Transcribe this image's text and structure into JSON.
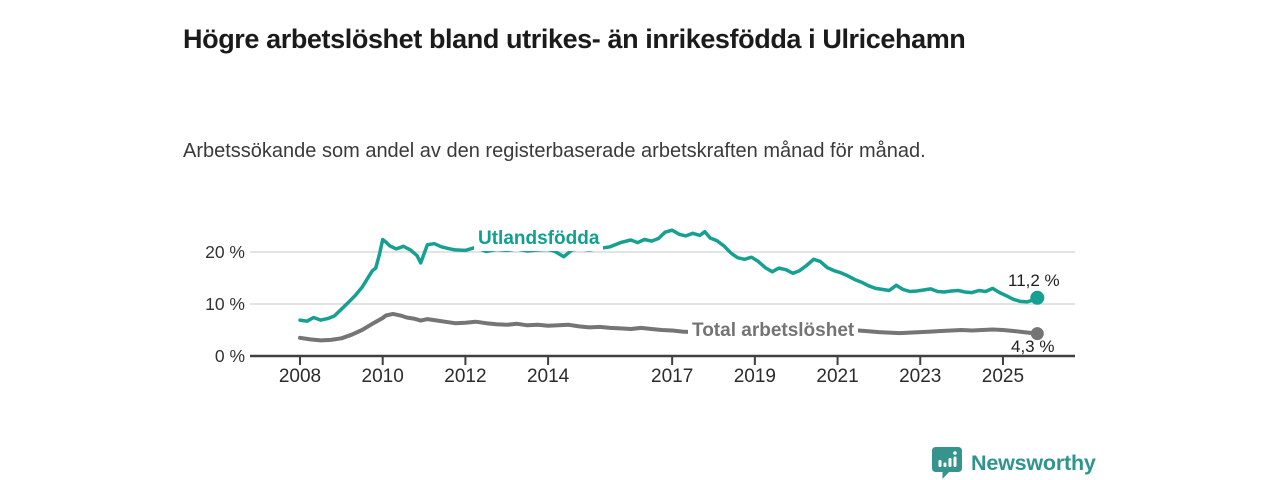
{
  "header": {
    "title": "Högre arbetslöshet bland utrikes- än inrikesfödda i Ulricehamn",
    "subtitle": "Arbetssökande som andel av den registerbaserade arbetskraften månad för månad."
  },
  "colors": {
    "foreign_line": "#16a091",
    "total_line": "#757575",
    "grid": "#dadada",
    "axis": "#404040",
    "tick_label": "#2b2b2b",
    "y_label": "#333333",
    "end_label": "#1f1f1f",
    "brand_teal": "#2f948c"
  },
  "branding": {
    "logo_text": "Newsworthy",
    "logo_icon": "speech-bubble-bar-chart-icon"
  },
  "chart_data": {
    "type": "line",
    "title": "Högre arbetslöshet bland utrikes- än inrikesfödda i Ulricehamn",
    "subtitle": "Arbetssökande som andel av den registerbaserade arbetskraften månad för månad.",
    "xlabel": "",
    "ylabel": "",
    "grid": "horizontal-only",
    "legend_position": "inline-on-lines",
    "xlim": [
      2007.8,
      2026.1
    ],
    "ylim": [
      0,
      25
    ],
    "yticks": [
      {
        "value": 0,
        "label": "0 %"
      },
      {
        "value": 10,
        "label": "10 %"
      },
      {
        "value": 20,
        "label": "20 %"
      }
    ],
    "xticks": [
      {
        "value": 2008,
        "label": "2008"
      },
      {
        "value": 2010,
        "label": "2010"
      },
      {
        "value": 2012,
        "label": "2012"
      },
      {
        "value": 2014,
        "label": "2014"
      },
      {
        "value": 2017,
        "label": "2017"
      },
      {
        "value": 2019,
        "label": "2019"
      },
      {
        "value": 2021,
        "label": "2021"
      },
      {
        "value": 2023,
        "label": "2023"
      },
      {
        "value": 2025,
        "label": "2025"
      }
    ],
    "series": [
      {
        "name": "Utlandsfödda",
        "color": "#16a091",
        "end_value": 11.2,
        "end_label": "11,2 %",
        "points": [
          [
            2008.0,
            6.9
          ],
          [
            2008.17,
            6.7
          ],
          [
            2008.33,
            7.4
          ],
          [
            2008.5,
            6.9
          ],
          [
            2008.67,
            7.2
          ],
          [
            2008.83,
            7.7
          ],
          [
            2009.0,
            9.0
          ],
          [
            2009.17,
            10.3
          ],
          [
            2009.33,
            11.6
          ],
          [
            2009.5,
            13.2
          ],
          [
            2009.67,
            15.4
          ],
          [
            2009.75,
            16.4
          ],
          [
            2009.83,
            16.9
          ],
          [
            2009.92,
            19.5
          ],
          [
            2010.0,
            22.4
          ],
          [
            2010.08,
            21.9
          ],
          [
            2010.17,
            21.2
          ],
          [
            2010.33,
            20.6
          ],
          [
            2010.5,
            21.1
          ],
          [
            2010.67,
            20.4
          ],
          [
            2010.83,
            19.3
          ],
          [
            2010.92,
            17.9
          ],
          [
            2011.08,
            21.4
          ],
          [
            2011.25,
            21.6
          ],
          [
            2011.42,
            21.0
          ],
          [
            2011.58,
            20.7
          ],
          [
            2011.75,
            20.4
          ],
          [
            2012.0,
            20.3
          ],
          [
            2012.25,
            20.9
          ],
          [
            2012.5,
            20.1
          ],
          [
            2012.75,
            20.5
          ],
          [
            2013.0,
            20.3
          ],
          [
            2013.25,
            20.6
          ],
          [
            2013.5,
            20.2
          ],
          [
            2013.75,
            20.4
          ],
          [
            2014.0,
            20.5
          ],
          [
            2014.17,
            20.1
          ],
          [
            2014.38,
            19.1
          ],
          [
            2014.58,
            20.4
          ],
          [
            2014.75,
            20.6
          ],
          [
            2015.0,
            20.4
          ],
          [
            2015.25,
            20.7
          ],
          [
            2015.5,
            21.0
          ],
          [
            2015.75,
            21.8
          ],
          [
            2016.0,
            22.3
          ],
          [
            2016.17,
            21.8
          ],
          [
            2016.33,
            22.4
          ],
          [
            2016.5,
            22.1
          ],
          [
            2016.67,
            22.6
          ],
          [
            2016.83,
            23.8
          ],
          [
            2017.0,
            24.2
          ],
          [
            2017.17,
            23.4
          ],
          [
            2017.33,
            23.1
          ],
          [
            2017.5,
            23.6
          ],
          [
            2017.67,
            23.2
          ],
          [
            2017.79,
            23.9
          ],
          [
            2017.92,
            22.7
          ],
          [
            2018.08,
            22.2
          ],
          [
            2018.25,
            21.2
          ],
          [
            2018.42,
            19.8
          ],
          [
            2018.58,
            18.9
          ],
          [
            2018.75,
            18.6
          ],
          [
            2018.92,
            19.0
          ],
          [
            2019.08,
            18.2
          ],
          [
            2019.25,
            17.0
          ],
          [
            2019.42,
            16.2
          ],
          [
            2019.58,
            16.9
          ],
          [
            2019.75,
            16.6
          ],
          [
            2019.92,
            15.9
          ],
          [
            2020.08,
            16.4
          ],
          [
            2020.25,
            17.4
          ],
          [
            2020.42,
            18.6
          ],
          [
            2020.58,
            18.2
          ],
          [
            2020.75,
            17.0
          ],
          [
            2020.92,
            16.4
          ],
          [
            2021.08,
            16.0
          ],
          [
            2021.25,
            15.4
          ],
          [
            2021.42,
            14.7
          ],
          [
            2021.58,
            14.2
          ],
          [
            2021.75,
            13.5
          ],
          [
            2021.92,
            13.0
          ],
          [
            2022.08,
            12.8
          ],
          [
            2022.25,
            12.6
          ],
          [
            2022.42,
            13.6
          ],
          [
            2022.58,
            12.8
          ],
          [
            2022.75,
            12.4
          ],
          [
            2022.92,
            12.5
          ],
          [
            2023.08,
            12.7
          ],
          [
            2023.25,
            12.9
          ],
          [
            2023.42,
            12.4
          ],
          [
            2023.58,
            12.3
          ],
          [
            2023.75,
            12.5
          ],
          [
            2023.92,
            12.6
          ],
          [
            2024.08,
            12.3
          ],
          [
            2024.25,
            12.2
          ],
          [
            2024.42,
            12.6
          ],
          [
            2024.58,
            12.4
          ],
          [
            2024.75,
            13.0
          ],
          [
            2024.92,
            12.2
          ],
          [
            2025.08,
            11.6
          ],
          [
            2025.25,
            10.9
          ],
          [
            2025.42,
            10.5
          ],
          [
            2025.58,
            10.4
          ],
          [
            2025.75,
            10.8
          ],
          [
            2025.83,
            11.2
          ]
        ]
      },
      {
        "name": "Total arbetslöshet",
        "color": "#757575",
        "end_value": 4.3,
        "end_label": "4,3 %",
        "points": [
          [
            2008.0,
            3.5
          ],
          [
            2008.25,
            3.2
          ],
          [
            2008.5,
            3.0
          ],
          [
            2008.75,
            3.1
          ],
          [
            2009.0,
            3.4
          ],
          [
            2009.25,
            4.1
          ],
          [
            2009.5,
            5.0
          ],
          [
            2009.75,
            6.2
          ],
          [
            2010.0,
            7.3
          ],
          [
            2010.08,
            7.8
          ],
          [
            2010.25,
            8.1
          ],
          [
            2010.42,
            7.8
          ],
          [
            2010.58,
            7.4
          ],
          [
            2010.75,
            7.2
          ],
          [
            2010.92,
            6.8
          ],
          [
            2011.08,
            7.1
          ],
          [
            2011.25,
            6.9
          ],
          [
            2011.5,
            6.6
          ],
          [
            2011.75,
            6.3
          ],
          [
            2012.0,
            6.4
          ],
          [
            2012.25,
            6.6
          ],
          [
            2012.5,
            6.3
          ],
          [
            2012.75,
            6.1
          ],
          [
            2013.0,
            6.0
          ],
          [
            2013.25,
            6.2
          ],
          [
            2013.5,
            5.9
          ],
          [
            2013.75,
            6.0
          ],
          [
            2014.0,
            5.8
          ],
          [
            2014.25,
            5.9
          ],
          [
            2014.5,
            6.0
          ],
          [
            2014.75,
            5.7
          ],
          [
            2015.0,
            5.5
          ],
          [
            2015.25,
            5.6
          ],
          [
            2015.5,
            5.4
          ],
          [
            2015.75,
            5.3
          ],
          [
            2016.0,
            5.2
          ],
          [
            2016.25,
            5.4
          ],
          [
            2016.5,
            5.2
          ],
          [
            2016.75,
            5.0
          ],
          [
            2017.0,
            4.9
          ],
          [
            2017.25,
            4.7
          ],
          [
            2017.5,
            4.6
          ],
          [
            2018.0,
            4.5
          ],
          [
            2018.5,
            4.4
          ],
          [
            2019.0,
            4.5
          ],
          [
            2019.5,
            4.4
          ],
          [
            2020.0,
            4.8
          ],
          [
            2020.33,
            5.6
          ],
          [
            2020.67,
            5.4
          ],
          [
            2021.0,
            5.2
          ],
          [
            2021.33,
            5.0
          ],
          [
            2021.67,
            4.8
          ],
          [
            2022.0,
            4.6
          ],
          [
            2022.25,
            4.5
          ],
          [
            2022.5,
            4.4
          ],
          [
            2022.75,
            4.5
          ],
          [
            2023.0,
            4.6
          ],
          [
            2023.25,
            4.7
          ],
          [
            2023.5,
            4.8
          ],
          [
            2023.75,
            4.9
          ],
          [
            2024.0,
            5.0
          ],
          [
            2024.25,
            4.9
          ],
          [
            2024.5,
            5.0
          ],
          [
            2024.75,
            5.1
          ],
          [
            2025.0,
            5.0
          ],
          [
            2025.25,
            4.8
          ],
          [
            2025.5,
            4.6
          ],
          [
            2025.83,
            4.3
          ]
        ]
      }
    ]
  }
}
